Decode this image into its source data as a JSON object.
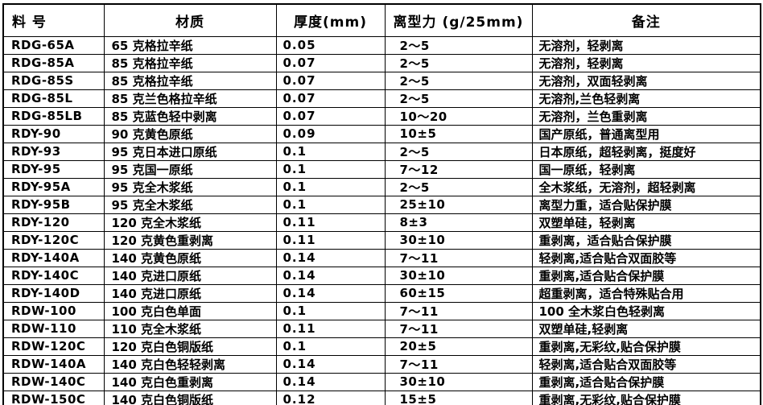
{
  "page": {
    "background_color": "#ffffff",
    "grid_color": "#000000",
    "text_color": "#000000"
  },
  "table": {
    "columns": [
      {
        "id": "part_number",
        "label": "料 号"
      },
      {
        "id": "material",
        "label": "材质"
      },
      {
        "id": "thickness",
        "label": "厚度(mm)"
      },
      {
        "id": "release_force",
        "label": "离型力 (g/25mm)"
      },
      {
        "id": "remarks",
        "label": "备注"
      }
    ],
    "rows": [
      {
        "part_number": "RDG-65A",
        "material": "65 克格拉辛纸",
        "thickness": "0.05",
        "release_force": "2～5",
        "remarks": "无溶剂，轻剥离"
      },
      {
        "part_number": "RDG-85A",
        "material": "85 克格拉辛纸",
        "thickness": "0.07",
        "release_force": "2～5",
        "remarks": "无溶剂，轻剥离"
      },
      {
        "part_number": "RDG-85S",
        "material": "85 克格拉辛纸",
        "thickness": "0.07",
        "release_force": "2～5",
        "remarks": "无溶剂，双面轻剥离"
      },
      {
        "part_number": "RDG-85L",
        "material": "85 克兰色格拉辛纸",
        "thickness": "0.07",
        "release_force": "2～5",
        "remarks": "无溶剂,兰色轻剥离"
      },
      {
        "part_number": "RDG-85LB",
        "material": "85 克蓝色轻中剥离",
        "thickness": "0.07",
        "release_force": "10～20",
        "remarks": "无溶剂，兰色重剥离"
      },
      {
        "part_number": "RDY-90",
        "material": "90 克黄色原纸",
        "thickness": "0.09",
        "release_force": "10±5",
        "remarks": "国产原纸，普通离型用"
      },
      {
        "part_number": "RDY-93",
        "material": "95 克日本进口原纸",
        "thickness": "0.1",
        "release_force": "2～5",
        "remarks": "日本原纸，超轻剥离，挺度好"
      },
      {
        "part_number": "RDY-95",
        "material": "95 克国一原纸",
        "thickness": "0.1",
        "release_force": "7～12",
        "remarks": "国一原纸，轻剥离"
      },
      {
        "part_number": "RDY-95A",
        "material": "95 克全木浆纸",
        "thickness": "0.1",
        "release_force": "2～5",
        "remarks": "全木浆纸，无溶剂，超轻剥离"
      },
      {
        "part_number": "RDY-95B",
        "material": "95 克全木浆纸",
        "thickness": "0.1",
        "release_force": "25±10",
        "remarks": "离型力重，适合贴保护膜"
      },
      {
        "part_number": "RDY-120",
        "material": "120 克全木浆纸",
        "thickness": "0.11",
        "release_force": "8±3",
        "remarks": "双塑单硅，轻剥离"
      },
      {
        "part_number": "RDY-120C",
        "material": "120 克黄色重剥离",
        "thickness": "0.11",
        "release_force": "30±10",
        "remarks": "重剥离，适合贴合保护膜"
      },
      {
        "part_number": "RDY-140A",
        "material": "140 克黄色原纸",
        "thickness": "0.14",
        "release_force": "7～11",
        "remarks": "轻剥离,适合贴合双面胶等"
      },
      {
        "part_number": "RDY-140C",
        "material": "140 克进口原纸",
        "thickness": "0.14",
        "release_force": "30±10",
        "remarks": "重剥离,适合贴合保护膜"
      },
      {
        "part_number": "RDY-140D",
        "material": "140 克进口原纸",
        "thickness": "0.14",
        "release_force": "60±15",
        "remarks": "超重剥离，适合特殊贴合用"
      },
      {
        "part_number": "RDW-100",
        "material": "100 克白色单面",
        "thickness": "0.1",
        "release_force": "7～11",
        "remarks": "100 全木浆白色轻剥离"
      },
      {
        "part_number": "RDW-110",
        "material": "110 克全木浆纸",
        "thickness": "0.11",
        "release_force": "7～11",
        "remarks": "双塑单硅,轻剥离"
      },
      {
        "part_number": "RDW-120C",
        "material": "120 克白色铜版纸",
        "thickness": "0.1",
        "release_force": "20±5",
        "remarks": "重剥离,无彩纹,贴合保护膜"
      },
      {
        "part_number": "RDW-140A",
        "material": "140 克白色轻轻剥离",
        "thickness": "0.14",
        "release_force": "7～11",
        "remarks": "轻剥离,适合贴合双面胶等"
      },
      {
        "part_number": "RDW-140C",
        "material": "140 克白色重剥离",
        "thickness": "0.14",
        "release_force": "30±10",
        "remarks": "重剥离,适合贴合保护膜"
      },
      {
        "part_number": "RDW-150C",
        "material": "140 克白色铜版纸",
        "thickness": "0.12",
        "release_force": "15±5",
        "remarks": "重剥离,无彩纹,贴合保护膜"
      }
    ]
  }
}
